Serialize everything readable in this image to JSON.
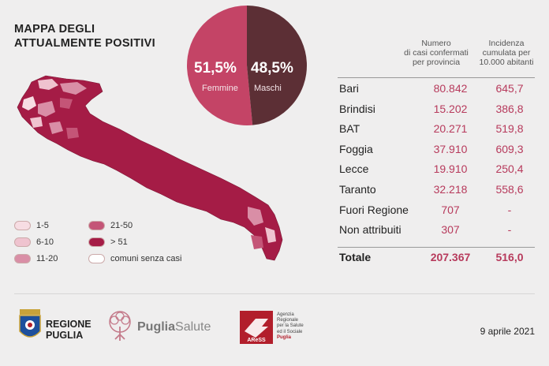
{
  "title_lines": [
    "MAPPA DEGLI",
    "ATTUALMENTE POSITIVI"
  ],
  "pie": {
    "slices": [
      {
        "label": "Femmine",
        "pct_text": "51,5%",
        "value": 51.5,
        "color": "#c44466"
      },
      {
        "label": "Maschi",
        "pct_text": "48,5%",
        "value": 48.5,
        "color": "#5c2f35"
      }
    ]
  },
  "legend": [
    {
      "label": "1-5",
      "color": "#f7dde3"
    },
    {
      "label": "6-10",
      "color": "#efc3cf"
    },
    {
      "label": "11-20",
      "color": "#d98ea6"
    },
    {
      "label": "21-50",
      "color": "#c45577"
    },
    {
      "label": "> 51",
      "color": "#a51c46"
    },
    {
      "label": "comuni senza casi",
      "color": "#ffffff"
    }
  ],
  "table": {
    "headers": [
      "Numero\ndi casi confermati\nper provincia",
      "Incidenza\ncumulata per\n10.000 abitanti"
    ],
    "rows": [
      {
        "province": "Bari",
        "cases": "80.842",
        "incidence": "645,7"
      },
      {
        "province": "Brindisi",
        "cases": "15.202",
        "incidence": "386,8"
      },
      {
        "province": "BAT",
        "cases": "20.271",
        "incidence": "519,8"
      },
      {
        "province": "Foggia",
        "cases": "37.910",
        "incidence": "609,3"
      },
      {
        "province": "Lecce",
        "cases": "19.910",
        "incidence": "250,4"
      },
      {
        "province": "Taranto",
        "cases": "32.218",
        "incidence": "558,6"
      },
      {
        "province": "Fuori Regione",
        "cases": "707",
        "incidence": "-"
      },
      {
        "province": "Non attribuiti",
        "cases": "307",
        "incidence": "-"
      }
    ],
    "total": {
      "province": "Totale",
      "cases": "207.367",
      "incidence": "516,0"
    }
  },
  "chart_data": {
    "type": "table",
    "columns": [
      "Numero di casi confermati per provincia",
      "Incidenza cumulata per 10.000 abitanti"
    ],
    "categories": [
      "Bari",
      "Brindisi",
      "BAT",
      "Foggia",
      "Lecce",
      "Taranto",
      "Fuori Regione",
      "Non attribuiti",
      "Totale"
    ],
    "cases": [
      80842,
      15202,
      20271,
      37910,
      19910,
      32218,
      707,
      307,
      207367
    ],
    "incidence": [
      645.7,
      386.8,
      519.8,
      609.3,
      250.4,
      558.6,
      null,
      null,
      516.0
    ],
    "pie": {
      "categories": [
        "Femmine",
        "Maschi"
      ],
      "values": [
        51.5,
        48.5
      ]
    }
  },
  "footer": {
    "regione_lines": [
      "REGIONE",
      "PUGLIA"
    ],
    "pugliasalute_bold": "Puglia",
    "pugliasalute_light": "Salute",
    "aress_logo": "AReSS",
    "aress_lines": [
      "Agenzia",
      "Regionale",
      "per la Salute",
      "ed il Sociale"
    ],
    "aress_region": "Puglia",
    "date": "9 aprile 2021"
  }
}
